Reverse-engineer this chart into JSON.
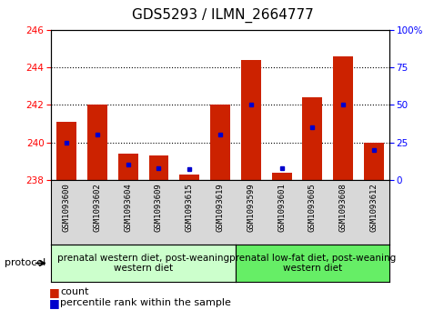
{
  "title": "GDS5293 / ILMN_2664777",
  "samples": [
    "GSM1093600",
    "GSM1093602",
    "GSM1093604",
    "GSM1093609",
    "GSM1093615",
    "GSM1093619",
    "GSM1093599",
    "GSM1093601",
    "GSM1093605",
    "GSM1093608",
    "GSM1093612"
  ],
  "count_values": [
    241.1,
    242.0,
    239.4,
    239.3,
    238.3,
    242.0,
    244.4,
    238.4,
    242.4,
    244.6,
    240.0
  ],
  "percentile_values": [
    25,
    30,
    10,
    8,
    7,
    30,
    50,
    8,
    35,
    50,
    20
  ],
  "ymin": 238,
  "ymax": 246,
  "yticks": [
    238,
    240,
    242,
    244,
    246
  ],
  "y2min": 0,
  "y2max": 100,
  "y2ticks": [
    0,
    25,
    50,
    75,
    100
  ],
  "bar_color": "#cc2200",
  "percentile_color": "#0000cc",
  "group1_label": "prenatal western diet, post-weaning\nwestern diet",
  "group2_label": "prenatal low-fat diet, post-weaning\nwestern diet",
  "group1_color": "#ccffcc",
  "group2_color": "#66ee66",
  "group1_count": 6,
  "group2_count": 5,
  "protocol_label": "protocol",
  "legend_count": "count",
  "legend_percentile": "percentile rank within the sample",
  "title_fontsize": 11,
  "tick_fontsize": 7.5,
  "sample_fontsize": 6.5,
  "group_fontsize": 7.5,
  "legend_fontsize": 8
}
